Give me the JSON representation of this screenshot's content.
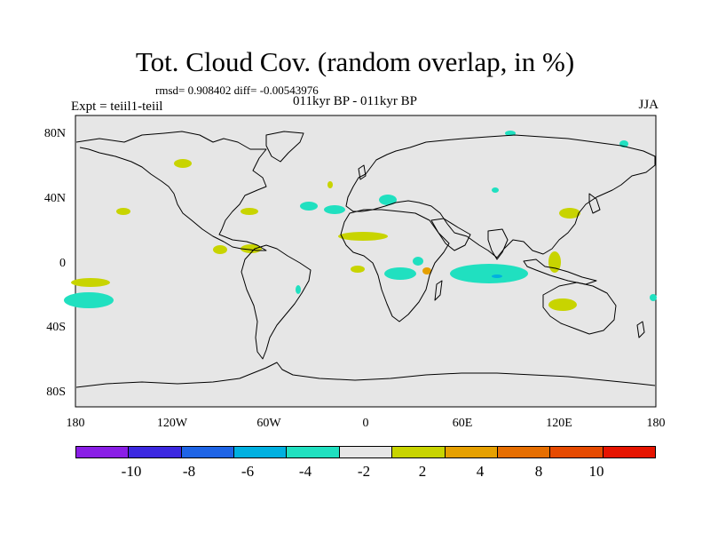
{
  "title": "Tot. Cloud Cov. (random overlap, in %)",
  "stats": "rmsd= 0.908402 diff= -0.00543976",
  "expt": "Expt = teiil1-teiil",
  "period": "011kyr BP - 011kyr BP",
  "season": "JJA",
  "lat_labels": [
    "80N",
    "40N",
    "0",
    "40S",
    "80S"
  ],
  "lon_labels": [
    "180",
    "120W",
    "60W",
    "0",
    "60E",
    "120E",
    "180"
  ],
  "colorbar": {
    "colors": [
      "#8a1ee6",
      "#3c28e0",
      "#1e64e6",
      "#00b0e0",
      "#20e0c0",
      "#e6e6e6",
      "#c8d400",
      "#e6a000",
      "#e66e00",
      "#e64a00",
      "#e61400"
    ],
    "labels": [
      "-10",
      "-8",
      "-6",
      "-4",
      "-2",
      "2",
      "4",
      "8",
      "10"
    ]
  },
  "background_color": "#e6e6e6"
}
